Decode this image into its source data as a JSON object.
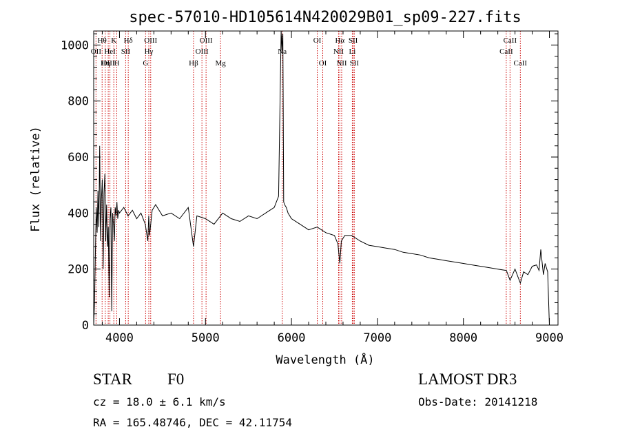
{
  "chart_data": {
    "type": "line",
    "title": "spec-57010-HD105614N420029B01_sp09-227.fits",
    "xlabel": "Wavelength (Å)",
    "ylabel": "Flux (relative)",
    "xlim": [
      3700,
      9100
    ],
    "ylim": [
      0,
      1050
    ],
    "x_ticks": [
      4000,
      5000,
      6000,
      7000,
      8000,
      9000
    ],
    "x_tick_labels": [
      "4000",
      "5000",
      "6000",
      "7000",
      "8000",
      "9000"
    ],
    "y_ticks": [
      0,
      200,
      400,
      600,
      800,
      1000
    ],
    "y_tick_labels": [
      "0",
      "200",
      "400",
      "600",
      "800",
      "1000"
    ],
    "grid": false,
    "series": [
      {
        "name": "spectrum",
        "x": [
          3700,
          3710,
          3720,
          3730,
          3740,
          3750,
          3760,
          3770,
          3780,
          3790,
          3800,
          3810,
          3820,
          3830,
          3840,
          3850,
          3860,
          3870,
          3880,
          3890,
          3900,
          3910,
          3920,
          3930,
          3940,
          3950,
          3960,
          3970,
          3980,
          3990,
          4000,
          4050,
          4100,
          4150,
          4200,
          4250,
          4300,
          4330,
          4340,
          4350,
          4380,
          4420,
          4500,
          4600,
          4700,
          4800,
          4861,
          4900,
          5000,
          5100,
          5200,
          5300,
          5400,
          5500,
          5600,
          5700,
          5800,
          5850,
          5880,
          5890,
          5896,
          5900,
          5910,
          5920,
          5940,
          5960,
          6000,
          6100,
          6200,
          6300,
          6400,
          6500,
          6540,
          6563,
          6580,
          6620,
          6700,
          6800,
          6900,
          7000,
          7100,
          7200,
          7300,
          7400,
          7500,
          7600,
          7700,
          7800,
          7900,
          8000,
          8100,
          8200,
          8300,
          8400,
          8500,
          8542,
          8600,
          8662,
          8700,
          8750,
          8800,
          8850,
          8880,
          8900,
          8930,
          8950,
          8980,
          9000
        ],
        "y": [
          0,
          80,
          260,
          420,
          330,
          480,
          350,
          640,
          300,
          450,
          520,
          200,
          470,
          540,
          300,
          430,
          280,
          350,
          100,
          380,
          420,
          50,
          400,
          360,
          300,
          420,
          390,
          440,
          380,
          410,
          400,
          420,
          390,
          410,
          380,
          400,
          360,
          300,
          390,
          320,
          410,
          430,
          390,
          400,
          380,
          420,
          280,
          390,
          380,
          360,
          400,
          380,
          370,
          390,
          380,
          400,
          420,
          460,
          1050,
          980,
          1030,
          1040,
          440,
          430,
          420,
          400,
          380,
          360,
          340,
          350,
          330,
          320,
          290,
          220,
          300,
          320,
          320,
          300,
          285,
          280,
          275,
          270,
          260,
          255,
          250,
          240,
          235,
          230,
          225,
          220,
          215,
          210,
          205,
          200,
          195,
          160,
          200,
          150,
          190,
          180,
          210,
          215,
          195,
          270,
          180,
          220,
          190,
          0
        ]
      }
    ],
    "spectral_lines": [
      {
        "label": "Hθ",
        "row": 0,
        "wl": 3798
      },
      {
        "label": "OII",
        "row": 1,
        "wl": 3727
      },
      {
        "label": "OIII",
        "row": 2,
        "wl": 3869
      },
      {
        "label": "Hη",
        "row": 2,
        "wl": 3835
      },
      {
        "label": "K",
        "row": 0,
        "wl": 3934
      },
      {
        "label": "HeI",
        "row": 1,
        "wl": 3889
      },
      {
        "label": "H",
        "row": 2,
        "wl": 3968
      },
      {
        "label": "SII",
        "row": 1,
        "wl": 4072
      },
      {
        "label": "Hδ",
        "row": 0,
        "wl": 4102
      },
      {
        "label": "OIII",
        "row": 0,
        "wl": 4363
      },
      {
        "label": "Hγ",
        "row": 1,
        "wl": 4341
      },
      {
        "label": "G",
        "row": 2,
        "wl": 4304
      },
      {
        "label": "OIII",
        "row": 0,
        "wl": 5007
      },
      {
        "label": "OIII",
        "row": 1,
        "wl": 4959
      },
      {
        "label": "Hβ",
        "row": 2,
        "wl": 4861
      },
      {
        "label": "Mg",
        "row": 2,
        "wl": 5175
      },
      {
        "label": "Na",
        "row": 1,
        "wl": 5893
      },
      {
        "label": "OI",
        "row": 0,
        "wl": 6300
      },
      {
        "label": "OI",
        "row": 2,
        "wl": 6364
      },
      {
        "label": "Hα",
        "row": 0,
        "wl": 6563
      },
      {
        "label": "SII",
        "row": 0,
        "wl": 6717
      },
      {
        "label": "NII",
        "row": 1,
        "wl": 6548
      },
      {
        "label": "Li",
        "row": 1,
        "wl": 6708
      },
      {
        "label": "NII",
        "row": 2,
        "wl": 6584
      },
      {
        "label": "SII",
        "row": 2,
        "wl": 6731
      },
      {
        "label": "CaII",
        "row": 0,
        "wl": 8542
      },
      {
        "label": "CaII",
        "row": 1,
        "wl": 8498
      },
      {
        "label": "CaII",
        "row": 2,
        "wl": 8662
      }
    ],
    "line_color": "#000000",
    "marker_color": "#cc0000"
  },
  "info": {
    "object_class": "STAR",
    "subclass": "F0",
    "survey": "LAMOST DR3",
    "cz": "cz = 18.0 ± 6.1 km/s",
    "obs_date": "Obs-Date: 20141218",
    "coords": "RA = 165.48746, DEC =  42.11754"
  }
}
